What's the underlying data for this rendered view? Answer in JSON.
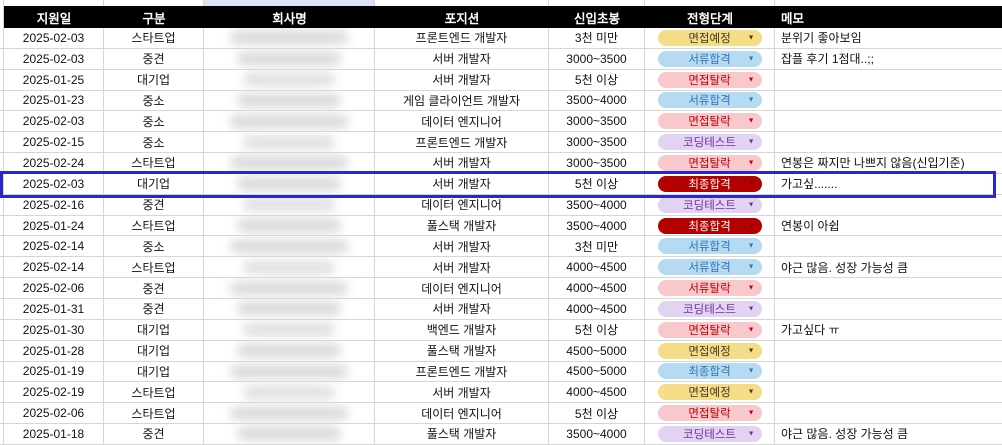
{
  "colors": {
    "header_bg": "#000000",
    "header_text": "#FFFFFF",
    "gridline": "#D6D6D6",
    "highlight_border": "#2727CD",
    "top_selection_fill": "#DCE4F3"
  },
  "icons": {
    "dropdown": "▼"
  },
  "stage_styles": {
    "yellow": {
      "bg": "#F5DC86",
      "text": "#3F3A28",
      "arrow": "#3F3A28"
    },
    "blue": {
      "bg": "#B5DAF2",
      "text": "#2E75B6",
      "arrow": "#2E75B6"
    },
    "pink": {
      "bg": "#F9C8CD",
      "text": "#C00000",
      "arrow": "#C00000"
    },
    "purple": {
      "bg": "#E3D3F2",
      "text": "#7030A0",
      "arrow": "#7030A0"
    },
    "darkred": {
      "bg": "#B30000",
      "text": "#FFFFFF",
      "arrow": "#6E0000"
    }
  },
  "table": {
    "columns": [
      {
        "label": "지원일"
      },
      {
        "label": "구분"
      },
      {
        "label": "회사명"
      },
      {
        "label": "포지션"
      },
      {
        "label": "신입초봉"
      },
      {
        "label": "전형단계"
      },
      {
        "label": "메모"
      }
    ],
    "rows": [
      {
        "date": "2025-02-03",
        "category": "스타트업",
        "position": "프론트엔드 개발자",
        "salary": "3천 미만",
        "stage": "면접예정",
        "stage_style": "yellow",
        "memo": "분위기 좋아보임",
        "highlighted": false
      },
      {
        "date": "2025-02-03",
        "category": "중견",
        "position": "서버 개발자",
        "salary": "3000~3500",
        "stage": "서류합격",
        "stage_style": "blue",
        "memo": "잡플 후기 1점대..;;",
        "highlighted": false
      },
      {
        "date": "2025-01-25",
        "category": "대기업",
        "position": "서버 개발자",
        "salary": "5천 이상",
        "stage": "면접탈락",
        "stage_style": "pink",
        "memo": "",
        "highlighted": false
      },
      {
        "date": "2025-01-23",
        "category": "중소",
        "position": "게임 클라이언트 개발자",
        "salary": "3500~4000",
        "stage": "서류합격",
        "stage_style": "blue",
        "memo": "",
        "highlighted": false
      },
      {
        "date": "2025-02-03",
        "category": "중소",
        "position": "데이터 엔지니어",
        "salary": "3000~3500",
        "stage": "면접탈락",
        "stage_style": "pink",
        "memo": "",
        "highlighted": false
      },
      {
        "date": "2025-02-15",
        "category": "중소",
        "position": "프론트엔드 개발자",
        "salary": "3000~3500",
        "stage": "코딩테스트",
        "stage_style": "purple",
        "memo": "",
        "highlighted": false
      },
      {
        "date": "2025-02-24",
        "category": "스타트업",
        "position": "서버 개발자",
        "salary": "3000~3500",
        "stage": "면접탈락",
        "stage_style": "pink",
        "memo": "연봉은 짜지만 나쁘지 않음(신입기준)",
        "highlighted": false
      },
      {
        "date": "2025-02-03",
        "category": "대기업",
        "position": "서버 개발자",
        "salary": "5천 이상",
        "stage": "최종합격",
        "stage_style": "darkred",
        "memo": "가고싶.......",
        "highlighted": true
      },
      {
        "date": "2025-02-16",
        "category": "중견",
        "position": "데이터 엔지니어",
        "salary": "3500~4000",
        "stage": "코딩테스트",
        "stage_style": "purple",
        "memo": "",
        "highlighted": false
      },
      {
        "date": "2025-01-24",
        "category": "스타트업",
        "position": "풀스택 개발자",
        "salary": "3500~4000",
        "stage": "최종합격",
        "stage_style": "darkred",
        "memo": "연봉이 아쉽",
        "highlighted": false
      },
      {
        "date": "2025-02-14",
        "category": "중소",
        "position": "서버 개발자",
        "salary": "3천 미만",
        "stage": "서류합격",
        "stage_style": "blue",
        "memo": "",
        "highlighted": false
      },
      {
        "date": "2025-02-14",
        "category": "스타트업",
        "position": "서버 개발자",
        "salary": "4000~4500",
        "stage": "서류합격",
        "stage_style": "blue",
        "memo": "야근 많음. 성장 가능성 큼",
        "highlighted": false
      },
      {
        "date": "2025-02-06",
        "category": "중견",
        "position": "데이터 엔지니어",
        "salary": "4000~4500",
        "stage": "서류탈락",
        "stage_style": "pink",
        "memo": "",
        "highlighted": false
      },
      {
        "date": "2025-01-31",
        "category": "중견",
        "position": "서버 개발자",
        "salary": "4000~4500",
        "stage": "코딩테스트",
        "stage_style": "purple",
        "memo": "",
        "highlighted": false
      },
      {
        "date": "2025-01-30",
        "category": "대기업",
        "position": "백엔드 개발자",
        "salary": "5천 이상",
        "stage": "면접탈락",
        "stage_style": "pink",
        "memo": "가고싶다 ㅠ",
        "highlighted": false
      },
      {
        "date": "2025-01-28",
        "category": "대기업",
        "position": "풀스택 개발자",
        "salary": "4500~5000",
        "stage": "면접예정",
        "stage_style": "yellow",
        "memo": "",
        "highlighted": false
      },
      {
        "date": "2025-01-19",
        "category": "대기업",
        "position": "프론트엔드 개발자",
        "salary": "4500~5000",
        "stage": "최종합격",
        "stage_style": "blue",
        "memo": "",
        "highlighted": false
      },
      {
        "date": "2025-02-19",
        "category": "스타트업",
        "position": "서버 개발자",
        "salary": "4000~4500",
        "stage": "면접예정",
        "stage_style": "yellow",
        "memo": "",
        "highlighted": false
      },
      {
        "date": "2025-02-06",
        "category": "스타트업",
        "position": "데이터 엔지니어",
        "salary": "5천 이상",
        "stage": "면접탈락",
        "stage_style": "pink",
        "memo": "",
        "highlighted": false
      },
      {
        "date": "2025-01-18",
        "category": "중견",
        "position": "풀스택 개발자",
        "salary": "3500~4000",
        "stage": "코딩테스트",
        "stage_style": "purple",
        "memo": "야근 많음. 성장 가능성 큼",
        "highlighted": false
      }
    ]
  }
}
